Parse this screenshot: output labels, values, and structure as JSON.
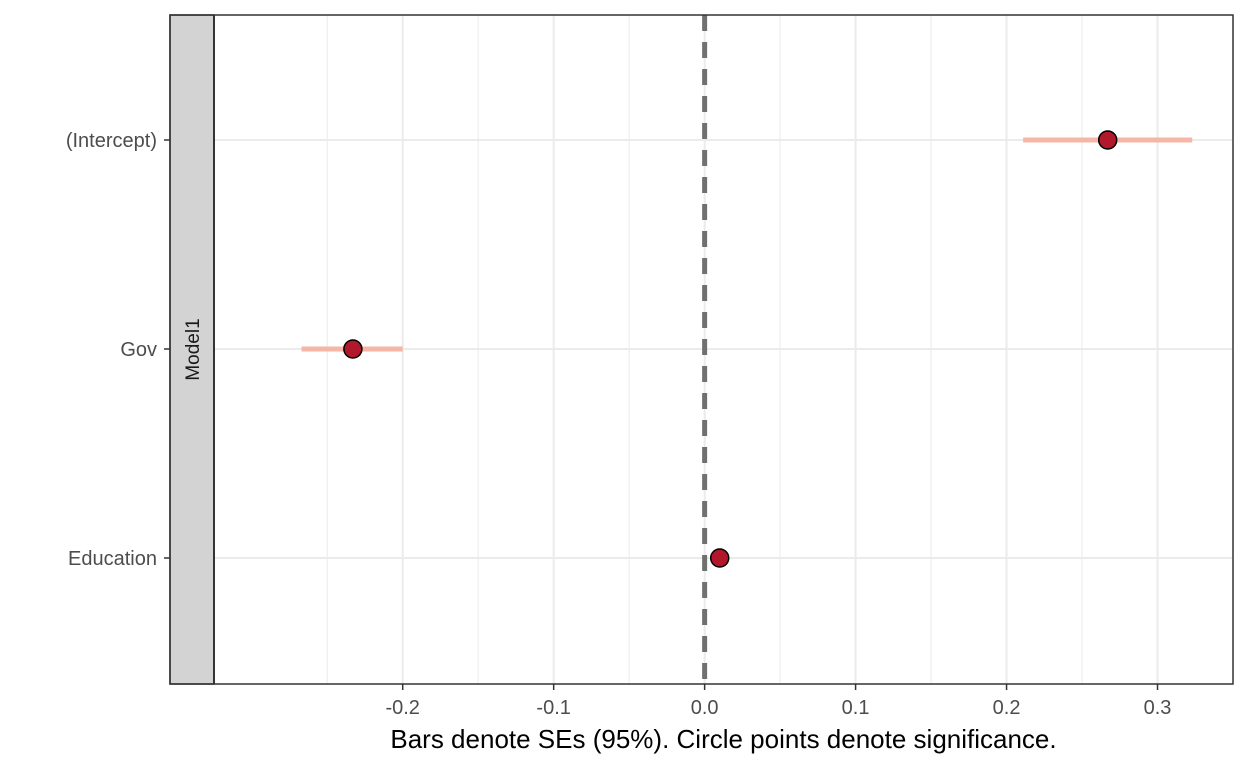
{
  "chart_data": {
    "type": "scatter",
    "subtype": "coefficient-plot",
    "facet_strip_label": "Model1",
    "xlabel": "Bars denote SEs (95%). Circle points denote significance.",
    "ylabel": "",
    "title": "",
    "categories": [
      "(Intercept)",
      "Gov",
      "Education"
    ],
    "x_ticks": [
      -0.2,
      -0.1,
      0.0,
      0.1,
      0.2,
      0.3
    ],
    "x_tick_labels": [
      "-0.2",
      "-0.1",
      "0.0",
      "0.1",
      "0.2",
      "0.3"
    ],
    "xlim": [
      -0.325,
      0.35
    ],
    "reference_line_x": 0.0,
    "grid": true,
    "series": [
      {
        "estimates": [
          {
            "term": "(Intercept)",
            "estimate": 0.267,
            "ci_low": 0.211,
            "ci_high": 0.323,
            "significant": true
          },
          {
            "term": "Gov",
            "estimate": -0.233,
            "ci_low": -0.267,
            "ci_high": -0.2,
            "significant": true
          },
          {
            "term": "Education",
            "estimate": 0.01,
            "ci_low": 0.005,
            "ci_high": 0.015,
            "significant": true
          }
        ]
      }
    ],
    "colors": {
      "point_fill": "#b2182b",
      "point_stroke": "#000000",
      "interval": "#f4b6a6",
      "reference_line": "#707070",
      "grid": "#ebebeb",
      "strip_fill": "#d3d3d3",
      "axis_text": "#4d4d4d"
    }
  }
}
